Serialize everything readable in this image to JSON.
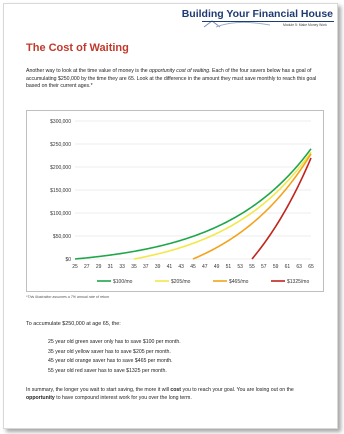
{
  "header": {
    "logo_title": "Building Your Financial House",
    "logo_subtitle": "Module 5: Make Money Work"
  },
  "section_title": "The Cost of Waiting",
  "intro": {
    "part1": "Another way to look at the time value of money is the ",
    "emphasis": "opportunity cost of waiting",
    "part2": ".  Each of the four savers below has a goal of accumulating $250,000 by the time they are 65.  Look at the difference in the amount they must save monthly to reach this goal based on their current ages.*"
  },
  "chart_data": {
    "type": "line",
    "x": [
      25,
      27,
      29,
      31,
      33,
      35,
      37,
      39,
      41,
      43,
      45,
      47,
      49,
      51,
      53,
      55,
      57,
      59,
      61,
      63,
      65
    ],
    "x_tick_labels": [
      "25",
      "27",
      "29",
      "31",
      "33",
      "35",
      "37",
      "39",
      "41",
      "43",
      "45",
      "47",
      "49",
      "51",
      "53",
      "55",
      "57",
      "59",
      "61",
      "63",
      "65"
    ],
    "y_tick_labels": [
      "$0",
      "$50,000",
      "$100,000",
      "$150,000",
      "$200,000",
      "$250,000",
      "$300,000"
    ],
    "ylim": [
      0,
      300000
    ],
    "xlim": [
      25,
      65
    ],
    "grid": true,
    "legend_position": "bottom",
    "rate": 0.07,
    "series": [
      {
        "name": "$100/mo",
        "monthly": 100,
        "start_age": 25,
        "color": "#1fa64a"
      },
      {
        "name": "$205/mo",
        "monthly": 205,
        "start_age": 35,
        "color": "#f2e84a"
      },
      {
        "name": "$465/mo",
        "monthly": 465,
        "start_age": 45,
        "color": "#f2a31b"
      },
      {
        "name": "$1325/mo",
        "monthly": 1325,
        "start_age": 55,
        "color": "#c0241c"
      }
    ]
  },
  "footnote": "*This illustration assumes a 7% annual rate of return",
  "accumulate_heading": "To accumulate $250,000 at age 65, the:",
  "savers": [
    "25 year old green saver only has to save $100 per month.",
    "35 year old yellow saver has to save $205 per month.",
    "45 year old orange saver has to save $465 per month.",
    "55 year old red saver has to save $1325 per month."
  ],
  "summary": {
    "part1": "In summary, the longer you wait to start saving, the more it will ",
    "bold1": "cost",
    "part2": " you to reach your goal.  You are losing out on the ",
    "bold2": "opportunity",
    "part3": " to have compound interest work for you over the long term."
  }
}
